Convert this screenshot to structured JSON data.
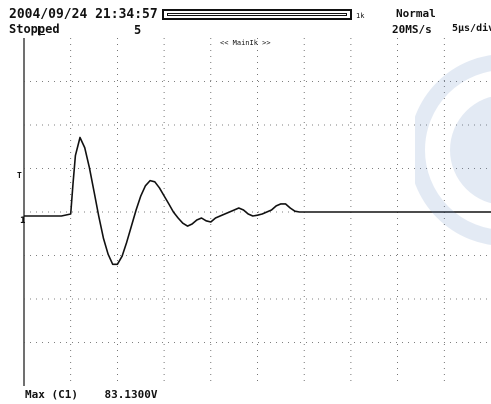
{
  "header": {
    "datetime": "2004/09/24 21:34:57",
    "acquisition_state": "Stopped",
    "acquisition_count": "5",
    "memory_size_label": "1k",
    "trigger_mode": "Normal",
    "sample_rate": "20MS/s",
    "time_div": "5µs/div"
  },
  "screen": {
    "zoom_label": "<< MainIk >>",
    "trigger_level_marker": "T",
    "ground_marker": "1"
  },
  "measurement": {
    "label": "Max (C1)",
    "value": "83.1300V"
  },
  "colors": {
    "background": "#ffffff",
    "trace": "#111111",
    "grid": "#555555",
    "watermark": "#6a8fc4"
  },
  "icons": {
    "trigger_slope": "trigger-slope-icon",
    "watermark": "watermark-seal"
  },
  "chart_data": {
    "type": "line",
    "grid": true,
    "divisions": {
      "x": 10,
      "y": 8
    },
    "series": [
      {
        "x": [
          0,
          0.4,
          0.8,
          1.0,
          1.05,
          1.1,
          1.2,
          1.3,
          1.4,
          1.5,
          1.6,
          1.7,
          1.8,
          1.9,
          2.0,
          2.1,
          2.2,
          2.3,
          2.4,
          2.5,
          2.6,
          2.7,
          2.8,
          2.9,
          3.0,
          3.1,
          3.2,
          3.3,
          3.4,
          3.5,
          3.6,
          3.7,
          3.8,
          3.9,
          4.0,
          4.1,
          4.2,
          4.3,
          4.4,
          4.5,
          4.6,
          4.7,
          4.8,
          4.9,
          5.0,
          5.1,
          5.2,
          5.3,
          5.4,
          5.5,
          5.6,
          5.7,
          5.8,
          5.9,
          6.0,
          6.2,
          6.5,
          7.0,
          8.0,
          9.0,
          10.0
        ],
        "y": [
          0,
          0,
          0,
          0.05,
          0.8,
          1.5,
          1.95,
          1.7,
          1.2,
          0.6,
          0.0,
          -0.55,
          -0.95,
          -1.2,
          -1.2,
          -1.0,
          -0.65,
          -0.25,
          0.15,
          0.5,
          0.75,
          0.88,
          0.85,
          0.7,
          0.5,
          0.3,
          0.1,
          -0.05,
          -0.18,
          -0.25,
          -0.2,
          -0.1,
          -0.05,
          -0.12,
          -0.15,
          -0.05,
          0.0,
          0.05,
          0.1,
          0.15,
          0.2,
          0.15,
          0.05,
          0.0,
          0.02,
          0.05,
          0.1,
          0.15,
          0.25,
          0.3,
          0.3,
          0.2,
          0.12,
          0.1,
          0.1,
          0.1,
          0.1,
          0.1,
          0.1,
          0.1,
          0.1
        ]
      }
    ]
  }
}
